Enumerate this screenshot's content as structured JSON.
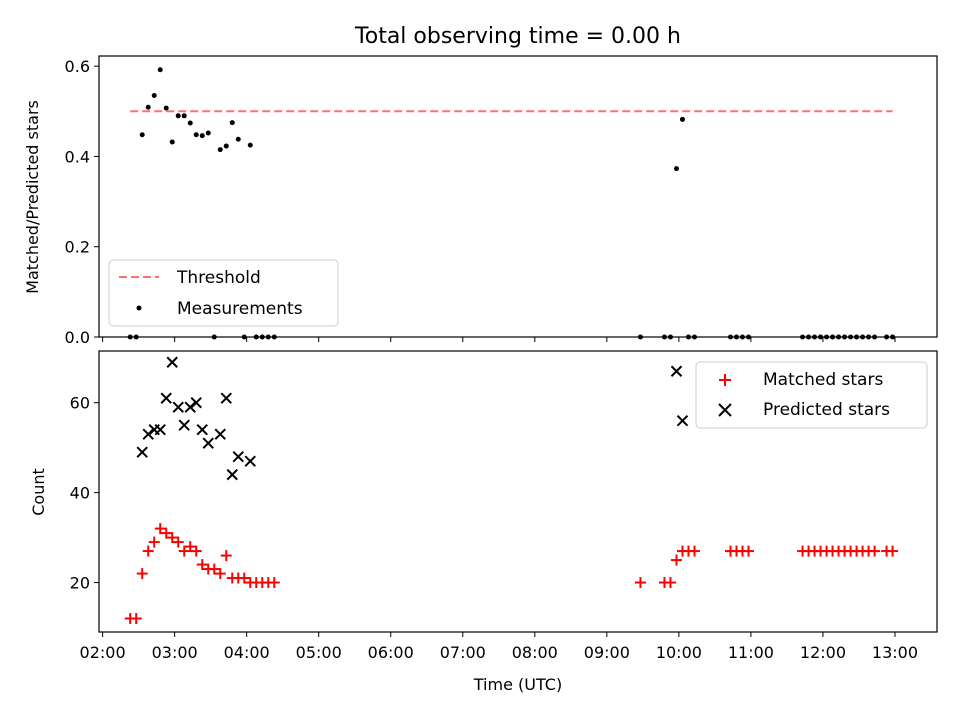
{
  "figure": {
    "title": "Total observing time = 0.00 h"
  },
  "colors": {
    "threshold": "#ff6f6f",
    "measurements": "#000000",
    "matched": "#ff0000",
    "predicted": "#000000"
  },
  "time_ticks": [
    "02:00",
    "03:00",
    "04:00",
    "05:00",
    "06:00",
    "07:00",
    "08:00",
    "09:00",
    "10:00",
    "11:00",
    "12:00",
    "13:00"
  ],
  "chart_data": [
    {
      "type": "scatter",
      "title": "Total observing time = 0.00 h",
      "xlabel": "",
      "ylabel": "Matched/Predicted stars",
      "xlim": [
        "01:57",
        "13:35"
      ],
      "ylim": [
        0.0,
        0.6225
      ],
      "yticks": [
        "0.0",
        "0.2",
        "0.4",
        "0.6"
      ],
      "ytick_values": [
        0.0,
        0.2,
        0.4,
        0.6
      ],
      "legend": "lower-left",
      "series": [
        {
          "name": "Threshold",
          "kind": "dashed-line",
          "x": [
            "02:23",
            "12:58"
          ],
          "y": [
            0.5,
            0.5
          ]
        },
        {
          "name": "Measurements",
          "kind": "dots",
          "points": [
            [
              "02:23",
              0.0
            ],
            [
              "02:28",
              0.0
            ],
            [
              "02:33",
              0.448
            ],
            [
              "02:38",
              0.509
            ],
            [
              "02:43",
              0.535
            ],
            [
              "02:48",
              0.592
            ],
            [
              "02:53",
              0.507
            ],
            [
              "02:58",
              0.432
            ],
            [
              "03:03",
              0.49
            ],
            [
              "03:08",
              0.49
            ],
            [
              "03:13",
              0.474
            ],
            [
              "03:18",
              0.448
            ],
            [
              "03:23",
              0.446
            ],
            [
              "03:28",
              0.452
            ],
            [
              "03:33",
              0.0
            ],
            [
              "03:38",
              0.415
            ],
            [
              "03:43",
              0.423
            ],
            [
              "03:48",
              0.475
            ],
            [
              "03:53",
              0.438
            ],
            [
              "03:58",
              0.0
            ],
            [
              "04:03",
              0.425
            ],
            [
              "04:08",
              0.0
            ],
            [
              "04:13",
              0.0
            ],
            [
              "04:18",
              0.0
            ],
            [
              "04:23",
              0.0
            ],
            [
              "09:28",
              0.0
            ],
            [
              "09:48",
              0.0
            ],
            [
              "09:53",
              0.0
            ],
            [
              "09:58",
              0.373
            ],
            [
              "10:03",
              0.482
            ],
            [
              "10:08",
              0.0
            ],
            [
              "10:13",
              0.0
            ],
            [
              "10:43",
              0.0
            ],
            [
              "10:48",
              0.0
            ],
            [
              "10:53",
              0.0
            ],
            [
              "10:58",
              0.0
            ],
            [
              "11:43",
              0.0
            ],
            [
              "11:48",
              0.0
            ],
            [
              "11:53",
              0.0
            ],
            [
              "11:58",
              0.0
            ],
            [
              "12:03",
              0.0
            ],
            [
              "12:08",
              0.0
            ],
            [
              "12:13",
              0.0
            ],
            [
              "12:18",
              0.0
            ],
            [
              "12:23",
              0.0
            ],
            [
              "12:28",
              0.0
            ],
            [
              "12:33",
              0.0
            ],
            [
              "12:38",
              0.0
            ],
            [
              "12:43",
              0.0
            ],
            [
              "12:53",
              0.0
            ],
            [
              "12:58",
              0.0
            ]
          ]
        }
      ]
    },
    {
      "type": "scatter",
      "xlabel": "Time (UTC)",
      "ylabel": "Count",
      "xlim": [
        "01:57",
        "13:35"
      ],
      "ylim": [
        9.0,
        71.5
      ],
      "yticks": [
        "20",
        "40",
        "60"
      ],
      "ytick_values": [
        20,
        40,
        60
      ],
      "legend": "top-right",
      "series": [
        {
          "name": "Matched stars",
          "marker": "plus",
          "points": [
            [
              "02:23",
              12
            ],
            [
              "02:28",
              12
            ],
            [
              "02:33",
              22
            ],
            [
              "02:38",
              27
            ],
            [
              "02:43",
              29
            ],
            [
              "02:48",
              32
            ],
            [
              "02:53",
              31
            ],
            [
              "02:58",
              30
            ],
            [
              "03:03",
              29
            ],
            [
              "03:08",
              27
            ],
            [
              "03:13",
              28
            ],
            [
              "03:18",
              27
            ],
            [
              "03:23",
              24
            ],
            [
              "03:28",
              23
            ],
            [
              "03:33",
              23
            ],
            [
              "03:38",
              22
            ],
            [
              "03:43",
              26
            ],
            [
              "03:48",
              21
            ],
            [
              "03:53",
              21
            ],
            [
              "03:58",
              21
            ],
            [
              "04:03",
              20
            ],
            [
              "04:08",
              20
            ],
            [
              "04:13",
              20
            ],
            [
              "04:18",
              20
            ],
            [
              "04:23",
              20
            ],
            [
              "09:28",
              20
            ],
            [
              "09:48",
              20
            ],
            [
              "09:53",
              20
            ],
            [
              "09:58",
              25
            ],
            [
              "10:03",
              27
            ],
            [
              "10:08",
              27
            ],
            [
              "10:13",
              27
            ],
            [
              "10:43",
              27
            ],
            [
              "10:48",
              27
            ],
            [
              "10:53",
              27
            ],
            [
              "10:58",
              27
            ],
            [
              "11:43",
              27
            ],
            [
              "11:48",
              27
            ],
            [
              "11:53",
              27
            ],
            [
              "11:58",
              27
            ],
            [
              "12:03",
              27
            ],
            [
              "12:08",
              27
            ],
            [
              "12:13",
              27
            ],
            [
              "12:18",
              27
            ],
            [
              "12:23",
              27
            ],
            [
              "12:28",
              27
            ],
            [
              "12:33",
              27
            ],
            [
              "12:38",
              27
            ],
            [
              "12:43",
              27
            ],
            [
              "12:53",
              27
            ],
            [
              "12:58",
              27
            ]
          ]
        },
        {
          "name": "Predicted stars",
          "marker": "x",
          "points": [
            [
              "02:33",
              49
            ],
            [
              "02:38",
              53
            ],
            [
              "02:43",
              54
            ],
            [
              "02:48",
              54
            ],
            [
              "02:53",
              61
            ],
            [
              "02:58",
              69
            ],
            [
              "03:03",
              59
            ],
            [
              "03:08",
              55
            ],
            [
              "03:13",
              59
            ],
            [
              "03:18",
              60
            ],
            [
              "03:23",
              54
            ],
            [
              "03:28",
              51
            ],
            [
              "03:38",
              53
            ],
            [
              "03:43",
              61
            ],
            [
              "03:48",
              44
            ],
            [
              "03:53",
              48
            ],
            [
              "04:03",
              47
            ],
            [
              "09:58",
              67
            ],
            [
              "10:03",
              56
            ]
          ]
        }
      ]
    }
  ]
}
